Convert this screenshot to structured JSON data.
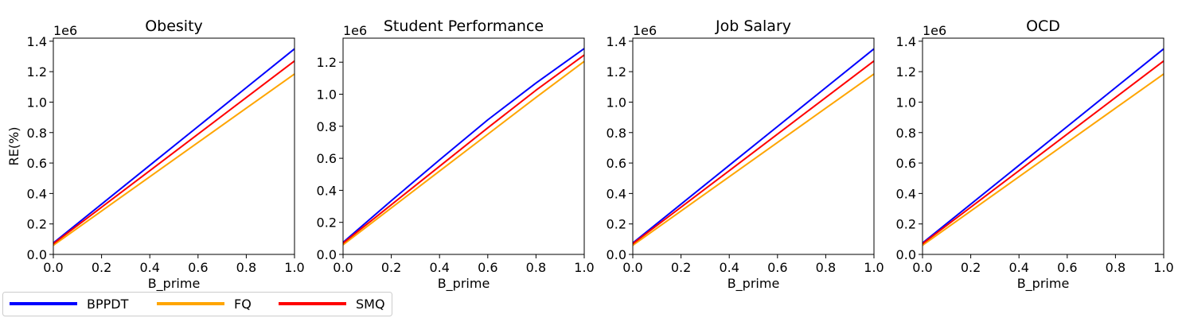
{
  "chart_data": [
    {
      "type": "line",
      "title": "Obesity",
      "xlabel": "B_prime",
      "ylabel": "RE(%)",
      "offset_text": "1e6",
      "xlim": [
        0.0,
        1.0
      ],
      "ylim": [
        0.0,
        1.42
      ],
      "xticks": [
        "0.0",
        "0.2",
        "0.4",
        "0.6",
        "0.8",
        "1.0"
      ],
      "yticks": [
        "0.0",
        "0.2",
        "0.4",
        "0.6",
        "0.8",
        "1.0",
        "1.2",
        "1.4"
      ],
      "y_scale": 1000000,
      "x": [
        0.0,
        0.2,
        0.4,
        0.6,
        0.8,
        1.0
      ],
      "series": [
        {
          "name": "BPPDT",
          "color": "#0000ff",
          "values": [
            0.075,
            0.33,
            0.585,
            0.84,
            1.095,
            1.35
          ]
        },
        {
          "name": "FQ",
          "color": "#ffa500",
          "values": [
            0.06,
            0.285,
            0.51,
            0.735,
            0.96,
            1.185
          ]
        },
        {
          "name": "SMQ",
          "color": "#ff0000",
          "values": [
            0.07,
            0.31,
            0.55,
            0.79,
            1.03,
            1.27
          ]
        }
      ]
    },
    {
      "type": "line",
      "title": "Student Performance",
      "xlabel": "B_prime",
      "ylabel": "",
      "offset_text": "1e6",
      "xlim": [
        0.0,
        1.0
      ],
      "ylim": [
        0.0,
        1.35
      ],
      "xticks": [
        "0.0",
        "0.2",
        "0.4",
        "0.6",
        "0.8",
        "1.0"
      ],
      "yticks": [
        "0.0",
        "0.2",
        "0.4",
        "0.6",
        "0.8",
        "1.0",
        "1.2"
      ],
      "y_scale": 1000000,
      "x": [
        0.0,
        0.2,
        0.4,
        0.6,
        0.8,
        1.0
      ],
      "series": [
        {
          "name": "BPPDT",
          "color": "#0000ff",
          "values": [
            0.075,
            0.335,
            0.59,
            0.84,
            1.07,
            1.285
          ]
        },
        {
          "name": "FQ",
          "color": "#ffa500",
          "values": [
            0.06,
            0.29,
            0.52,
            0.75,
            0.98,
            1.205
          ]
        },
        {
          "name": "SMQ",
          "color": "#ff0000",
          "values": [
            0.07,
            0.31,
            0.55,
            0.79,
            1.025,
            1.245
          ]
        }
      ]
    },
    {
      "type": "line",
      "title": "Job Salary",
      "xlabel": "B_prime",
      "ylabel": "",
      "offset_text": "1e6",
      "xlim": [
        0.0,
        1.0
      ],
      "ylim": [
        0.0,
        1.42
      ],
      "xticks": [
        "0.0",
        "0.2",
        "0.4",
        "0.6",
        "0.8",
        "1.0"
      ],
      "yticks": [
        "0.0",
        "0.2",
        "0.4",
        "0.6",
        "0.8",
        "1.0",
        "1.2",
        "1.4"
      ],
      "y_scale": 1000000,
      "x": [
        0.0,
        0.2,
        0.4,
        0.6,
        0.8,
        1.0
      ],
      "series": [
        {
          "name": "BPPDT",
          "color": "#0000ff",
          "values": [
            0.075,
            0.33,
            0.585,
            0.84,
            1.095,
            1.35
          ]
        },
        {
          "name": "FQ",
          "color": "#ffa500",
          "values": [
            0.06,
            0.285,
            0.51,
            0.735,
            0.96,
            1.185
          ]
        },
        {
          "name": "SMQ",
          "color": "#ff0000",
          "values": [
            0.07,
            0.31,
            0.55,
            0.79,
            1.03,
            1.27
          ]
        }
      ]
    },
    {
      "type": "line",
      "title": "OCD",
      "xlabel": "B_prime",
      "ylabel": "",
      "offset_text": "1e6",
      "xlim": [
        0.0,
        1.0
      ],
      "ylim": [
        0.0,
        1.42
      ],
      "xticks": [
        "0.0",
        "0.2",
        "0.4",
        "0.6",
        "0.8",
        "1.0"
      ],
      "yticks": [
        "0.0",
        "0.2",
        "0.4",
        "0.6",
        "0.8",
        "1.0",
        "1.2",
        "1.4"
      ],
      "y_scale": 1000000,
      "x": [
        0.0,
        0.2,
        0.4,
        0.6,
        0.8,
        1.0
      ],
      "series": [
        {
          "name": "BPPDT",
          "color": "#0000ff",
          "values": [
            0.075,
            0.33,
            0.585,
            0.84,
            1.095,
            1.35
          ]
        },
        {
          "name": "FQ",
          "color": "#ffa500",
          "values": [
            0.06,
            0.285,
            0.51,
            0.735,
            0.96,
            1.185
          ]
        },
        {
          "name": "SMQ",
          "color": "#ff0000",
          "values": [
            0.07,
            0.31,
            0.55,
            0.79,
            1.03,
            1.27
          ]
        }
      ]
    }
  ],
  "legend": {
    "placement": "bottom-left",
    "items": [
      {
        "label": "BPPDT",
        "color": "#0000ff"
      },
      {
        "label": "FQ",
        "color": "#ffa500"
      },
      {
        "label": "SMQ",
        "color": "#ff0000"
      }
    ]
  }
}
